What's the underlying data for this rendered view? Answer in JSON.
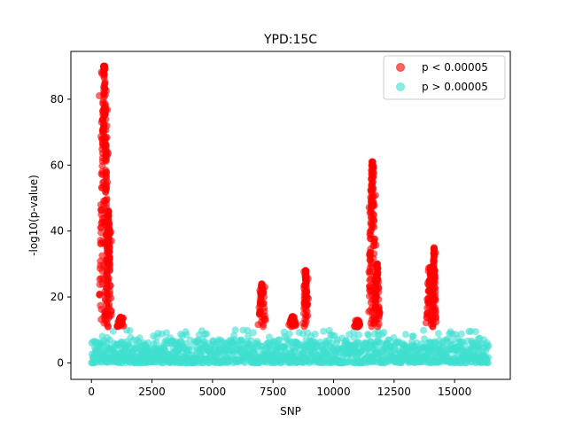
{
  "chart_data": {
    "type": "scatter",
    "title": "YPD:15C",
    "xlabel": "SNP",
    "ylabel": "-log10(p-value)",
    "xlim": [
      -850,
      17300
    ],
    "ylim": [
      -5,
      94.5
    ],
    "xticks": [
      0,
      2500,
      5000,
      7500,
      10000,
      12500,
      15000
    ],
    "yticks": [
      0,
      20,
      40,
      60,
      80
    ],
    "grid": false,
    "legend_position": "top-right",
    "series": [
      {
        "name": "p < 0.00005",
        "color": "#ff0000",
        "alpha": 0.6,
        "peaks": [
          {
            "center": 520,
            "halfwidth": 240,
            "max": 90
          },
          {
            "center": 700,
            "halfwidth": 150,
            "max": 46
          },
          {
            "center": 1200,
            "halfwidth": 140,
            "max": 14
          },
          {
            "center": 7050,
            "halfwidth": 180,
            "max": 24
          },
          {
            "center": 8300,
            "halfwidth": 200,
            "max": 14
          },
          {
            "center": 8850,
            "halfwidth": 120,
            "max": 28
          },
          {
            "center": 11000,
            "halfwidth": 150,
            "max": 13
          },
          {
            "center": 11600,
            "halfwidth": 180,
            "max": 61
          },
          {
            "center": 11800,
            "halfwidth": 150,
            "max": 30
          },
          {
            "center": 14000,
            "halfwidth": 200,
            "max": 29
          },
          {
            "center": 14150,
            "halfwidth": 100,
            "max": 35
          }
        ]
      },
      {
        "name": "p > 0.00005",
        "color": "#40e0d0",
        "alpha": 0.6,
        "x_range": [
          0,
          16400
        ],
        "typical_range": [
          0,
          7
        ],
        "max": 10
      }
    ]
  }
}
